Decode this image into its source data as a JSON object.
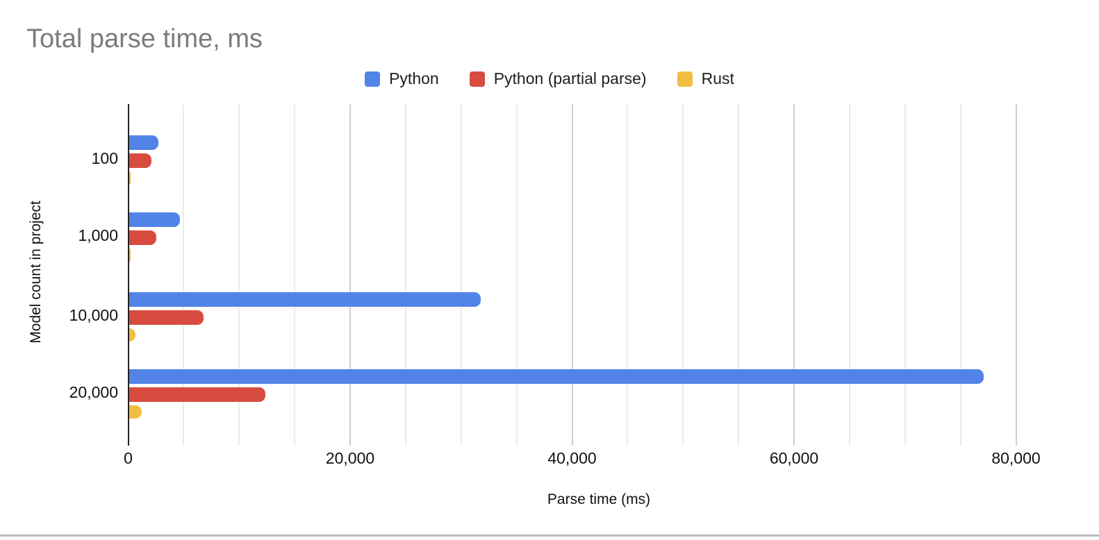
{
  "chart_data": {
    "type": "bar",
    "orientation": "horizontal",
    "title": "Total parse time, ms",
    "title_color": "#7b7b7b",
    "categories": [
      "100",
      "1,000",
      "10,000",
      "20,000"
    ],
    "series": [
      {
        "name": "Python",
        "color": "#5283E7",
        "values": [
          2600,
          4600,
          31700,
          77000
        ]
      },
      {
        "name": "Python (partial parse)",
        "color": "#D84C40",
        "values": [
          2000,
          2450,
          6700,
          12250
        ]
      },
      {
        "name": "Rust",
        "color": "#F2BE42",
        "values": [
          100,
          150,
          590,
          1150
        ]
      }
    ],
    "xlabel": "Parse time (ms)",
    "ylabel": "Model count in project",
    "xlim": [
      0,
      85000
    ],
    "x_ticks": [
      {
        "value": 0,
        "label": "0"
      },
      {
        "value": 20000,
        "label": "20,000"
      },
      {
        "value": 40000,
        "label": "40,000"
      },
      {
        "value": 60000,
        "label": "60,000"
      },
      {
        "value": 80000,
        "label": "80,000"
      }
    ],
    "grid": {
      "on": true,
      "minor_step": 5000,
      "major_step": 20000
    },
    "legend_position": "top"
  }
}
